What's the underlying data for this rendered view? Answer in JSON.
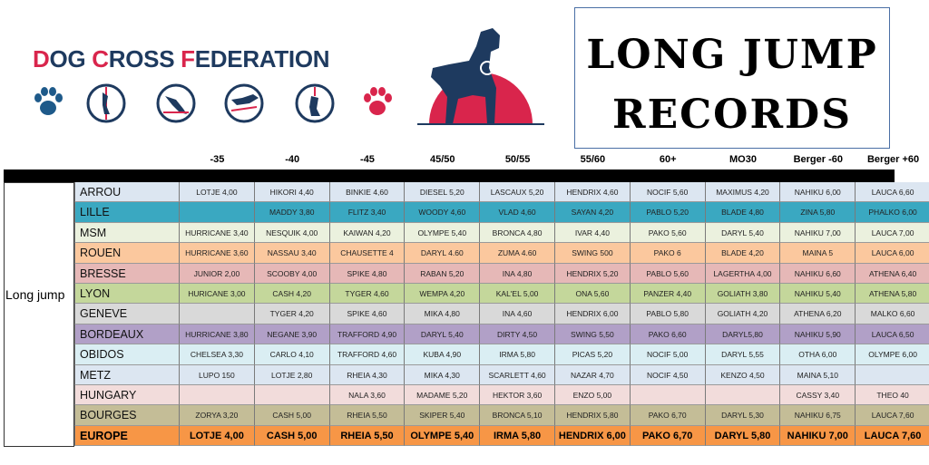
{
  "org": {
    "name_parts": [
      [
        "D",
        true
      ],
      [
        "OG ",
        false
      ],
      [
        "C",
        true
      ],
      [
        "ROSS ",
        false
      ],
      [
        "F",
        true
      ],
      [
        "EDERATION",
        false
      ]
    ]
  },
  "icons": [
    "paw-blue-icon",
    "dog-jump-high-icon",
    "dog-agility-icon",
    "dog-hurdle-icon",
    "dog-catch-icon",
    "paw-red-icon"
  ],
  "title": {
    "line1": "LONG JUMP",
    "line2": "RECORDS"
  },
  "event_label": "Long jump",
  "columns": [
    "-35",
    "-40",
    "-45",
    "45/50",
    "50/55",
    "55/60",
    "60+",
    "MO30",
    "Berger -60",
    "Berger +60"
  ],
  "colors": {
    "accent_red": "#d9254c",
    "brand_blue": "#1e3a5f"
  },
  "rows": [
    {
      "team": "ARROU",
      "bg": "#dce6f1",
      "cells": [
        "LOTJE 4,00",
        "HIKORI 4,40",
        "BINKIE 4,60",
        "DIESEL 5,20",
        "LASCAUX 5,20",
        "HENDRIX 4,60",
        "NOCIF 5,60",
        "MAXIMUS 4,20",
        "NAHIKU 6,00",
        "LAUCA 6,60"
      ]
    },
    {
      "team": "LILLE",
      "bg": "#3aa8c1",
      "cells": [
        "",
        "MADDY 3,80",
        "FLITZ 3,40",
        "WOODY 4,60",
        "VLAD 4,60",
        "SAYAN 4,20",
        "PABLO 5,20",
        "BLADE 4,80",
        "ZINA 5,80",
        "PHALKO 6,00"
      ]
    },
    {
      "team": "MSM",
      "bg": "#ebf1de",
      "cells": [
        "HURRICANE 3,40",
        "NESQUIK 4,00",
        "KAIWAN 4,20",
        "OLYMPE 5,40",
        "BRONCA 4,80",
        "IVAR 4,40",
        "PAKO 5,60",
        "DARYL 5,40",
        "NAHIKU 7,00",
        "LAUCA 7,00"
      ]
    },
    {
      "team": "ROUEN",
      "bg": "#fbc89e",
      "cells": [
        "HURRICANE 3,60",
        "NASSAU 3,40",
        "CHAUSETTE 4",
        "DARYL 4.60",
        "ZUMA 4.60",
        "SWING 500",
        "PAKO 6",
        "BLADE 4,20",
        "MAINA 5",
        "LAUCA 6,00"
      ]
    },
    {
      "team": "BRESSE",
      "bg": "#e6b8b7",
      "cells": [
        "JUNIOR 2,00",
        "SCOOBY 4,00",
        "SPIKE 4,80",
        "RABAN 5,20",
        "INA 4,80",
        "HENDRIX 5,20",
        "PABLO 5,60",
        "LAGERTHA 4,00",
        "NAHIKU 6,60",
        "ATHENA 6,40"
      ]
    },
    {
      "team": "LYON",
      "bg": "#c4d79b",
      "cells": [
        "HURICANE 3,00",
        "CASH 4,20",
        "TYGER 4,60",
        "WEMPA 4,20",
        "KAL'EL 5,00",
        "ONA 5,60",
        "PANZER 4,40",
        "GOLIATH 3,80",
        "NAHIKU 5,40",
        "ATHENA 5,80"
      ]
    },
    {
      "team": "GENEVE",
      "bg": "#d9d9d9",
      "cells": [
        "",
        "TYGER 4,20",
        "SPIKE 4,60",
        "MIKA 4,80",
        "INA 4,60",
        "HENDRIX 6,00",
        "PABLO 5,80",
        "GOLIATH 4,20",
        "ATHENA 6,20",
        "MALKO 6,60"
      ]
    },
    {
      "team": "BORDEAUX",
      "bg": "#b1a0c7",
      "cells": [
        "HURRICANE 3,80",
        "NEGANE 3,90",
        "TRAFFORD 4,90",
        "DARYL 5,40",
        "DIRTY 4,50",
        "SWING 5,50",
        "PAKO 6,60",
        "DARYL5,80",
        "NAHIKU 5,90",
        "LAUCA 6,50"
      ]
    },
    {
      "team": "OBIDOS",
      "bg": "#daeef3",
      "cells": [
        "CHELSEA 3,30",
        "CARLO 4,10",
        "TRAFFORD 4,60",
        "KUBA 4,90",
        "IRMA 5,80",
        "PICAS 5,20",
        "NOCIF 5,00",
        "DARYL 5,55",
        "OTHA 6,00",
        "OLYMPE 6,00"
      ]
    },
    {
      "team": "METZ",
      "bg": "#dce6f1",
      "cells": [
        "LUPO 150",
        "LOTJE 2,80",
        "RHEIA 4,30",
        "MIKA 4,30",
        "SCARLETT 4,60",
        "NAZAR 4,70",
        "NOCIF 4,50",
        "KENZO 4,50",
        "MAINA 5,10",
        ""
      ]
    },
    {
      "team": "HUNGARY",
      "bg": "#f2dcdb",
      "cells": [
        "",
        "",
        "NALA 3,60",
        "MADAME 5,20",
        "HEKTOR 3,60",
        "ENZO 5,00",
        "",
        "",
        "CASSY 3,40",
        "THEO 40"
      ]
    },
    {
      "team": "BOURGES",
      "bg": "#c4bd97",
      "cells": [
        "ZORYA 3,20",
        "CASH 5,00",
        "RHEIA 5,50",
        "SKIPER 5,40",
        "BRONCA 5,10",
        "HENDRIX 5,80",
        "PAKO 6,70",
        "DARYL 5,30",
        "NAHIKU 6,75",
        "LAUCA 7,60"
      ]
    },
    {
      "team": "EUROPE",
      "bg": "#f79646",
      "cells": [
        "LOTJE 4,00",
        "CASH 5,00",
        "RHEIA 5,50",
        "OLYMPE 5,40",
        "IRMA 5,80",
        "HENDRIX 6,00",
        "PAKO 6,70",
        "DARYL 5,80",
        "NAHIKU 7,00",
        "LAUCA 7,60"
      ]
    }
  ]
}
